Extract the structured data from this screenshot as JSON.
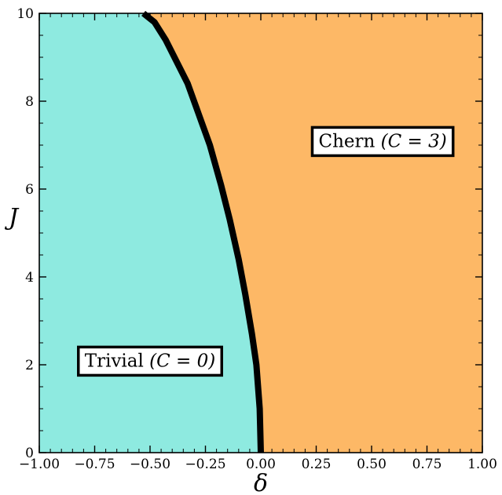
{
  "chart_data": {
    "type": "area",
    "xlabel": "δ",
    "ylabel": "J",
    "xlim": [
      -1.0,
      1.0
    ],
    "ylim": [
      0,
      10
    ],
    "x_ticks": [
      "−1.00",
      "−0.75",
      "−0.50",
      "−0.25",
      "0.00",
      "0.25",
      "0.50",
      "0.75",
      "1.00"
    ],
    "y_ticks": [
      "0",
      "2",
      "4",
      "6",
      "8",
      "10"
    ],
    "grid": false,
    "phase_boundary": {
      "x": [
        0.0,
        -0.005,
        -0.02,
        -0.04,
        -0.07,
        -0.1,
        -0.14,
        -0.18,
        -0.23,
        -0.28,
        -0.33,
        -0.38,
        -0.43,
        -0.48,
        -0.53
      ],
      "y": [
        0,
        1,
        2,
        2.7,
        3.6,
        4.4,
        5.3,
        6.1,
        7.0,
        7.7,
        8.4,
        8.9,
        9.4,
        9.8,
        10
      ]
    },
    "regions": [
      {
        "name": "trivial",
        "color": "#8eeae0",
        "label": "Trivial",
        "math": "(C = 0)",
        "label_at": [
          -0.5,
          2.1
        ]
      },
      {
        "name": "chern",
        "color": "#fdb866",
        "label": "Chern",
        "math": "(C = 3)",
        "label_at": [
          0.55,
          7.1
        ]
      }
    ],
    "boundary_color": "#000000"
  }
}
